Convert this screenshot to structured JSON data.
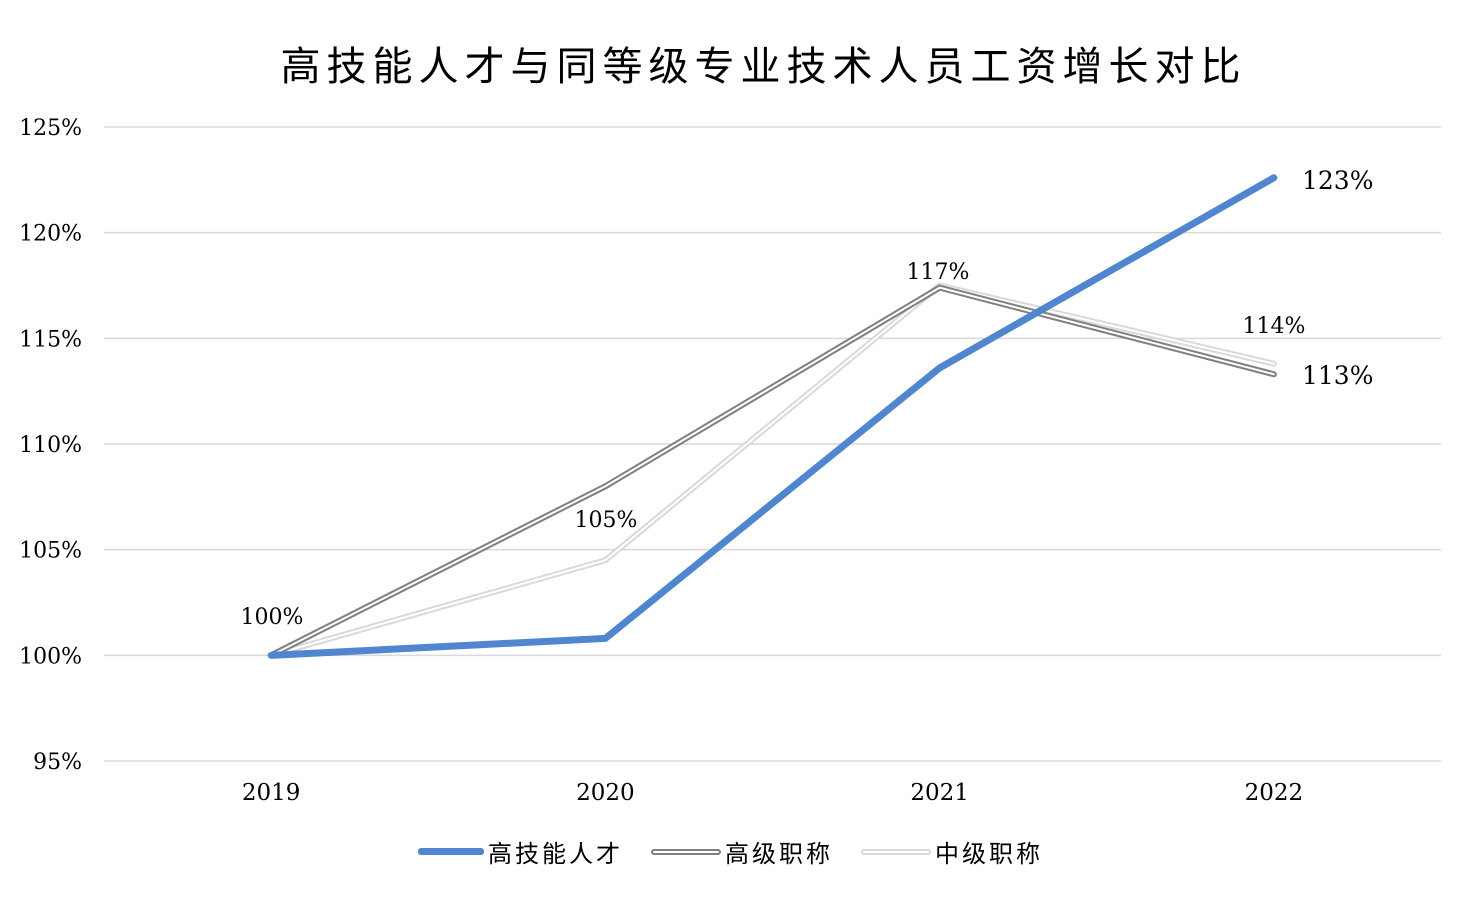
{
  "chart_data": {
    "type": "line",
    "title": "高技能人才与同等级专业技术人员工资增长对比",
    "xlabel": "",
    "ylabel": "",
    "categories": [
      "2019",
      "2020",
      "2021",
      "2022"
    ],
    "ylim": [
      95,
      125
    ],
    "y_ticks": [
      "95%",
      "100%",
      "105%",
      "110%",
      "115%",
      "120%",
      "125%"
    ],
    "grid": true,
    "legend_position": "bottom",
    "series": [
      {
        "name": "高技能人才",
        "color": "#4f86cf",
        "values": [
          100.0,
          100.8,
          113.6,
          122.6
        ]
      },
      {
        "name": "高级职称",
        "color": "#7f7f7f",
        "values": [
          100.0,
          108.0,
          117.4,
          113.3
        ]
      },
      {
        "name": "中级职称",
        "color": "#d9d9d9",
        "values": [
          100.0,
          104.5,
          117.5,
          113.8
        ]
      }
    ],
    "annotations": [
      {
        "text": "100%",
        "category": "2019",
        "series": "all"
      },
      {
        "text": "105%",
        "category": "2020",
        "series": "中级职称"
      },
      {
        "text": "117%",
        "category": "2021",
        "series": "高级职称"
      },
      {
        "text": "123%",
        "category": "2022",
        "series": "高技能人才"
      },
      {
        "text": "114%",
        "category": "2022",
        "series": "中级职称"
      },
      {
        "text": "113%",
        "category": "2022",
        "series": "高级职称"
      }
    ]
  },
  "legend": {
    "items": [
      "高技能人才",
      "高级职称",
      "中级职称"
    ]
  }
}
